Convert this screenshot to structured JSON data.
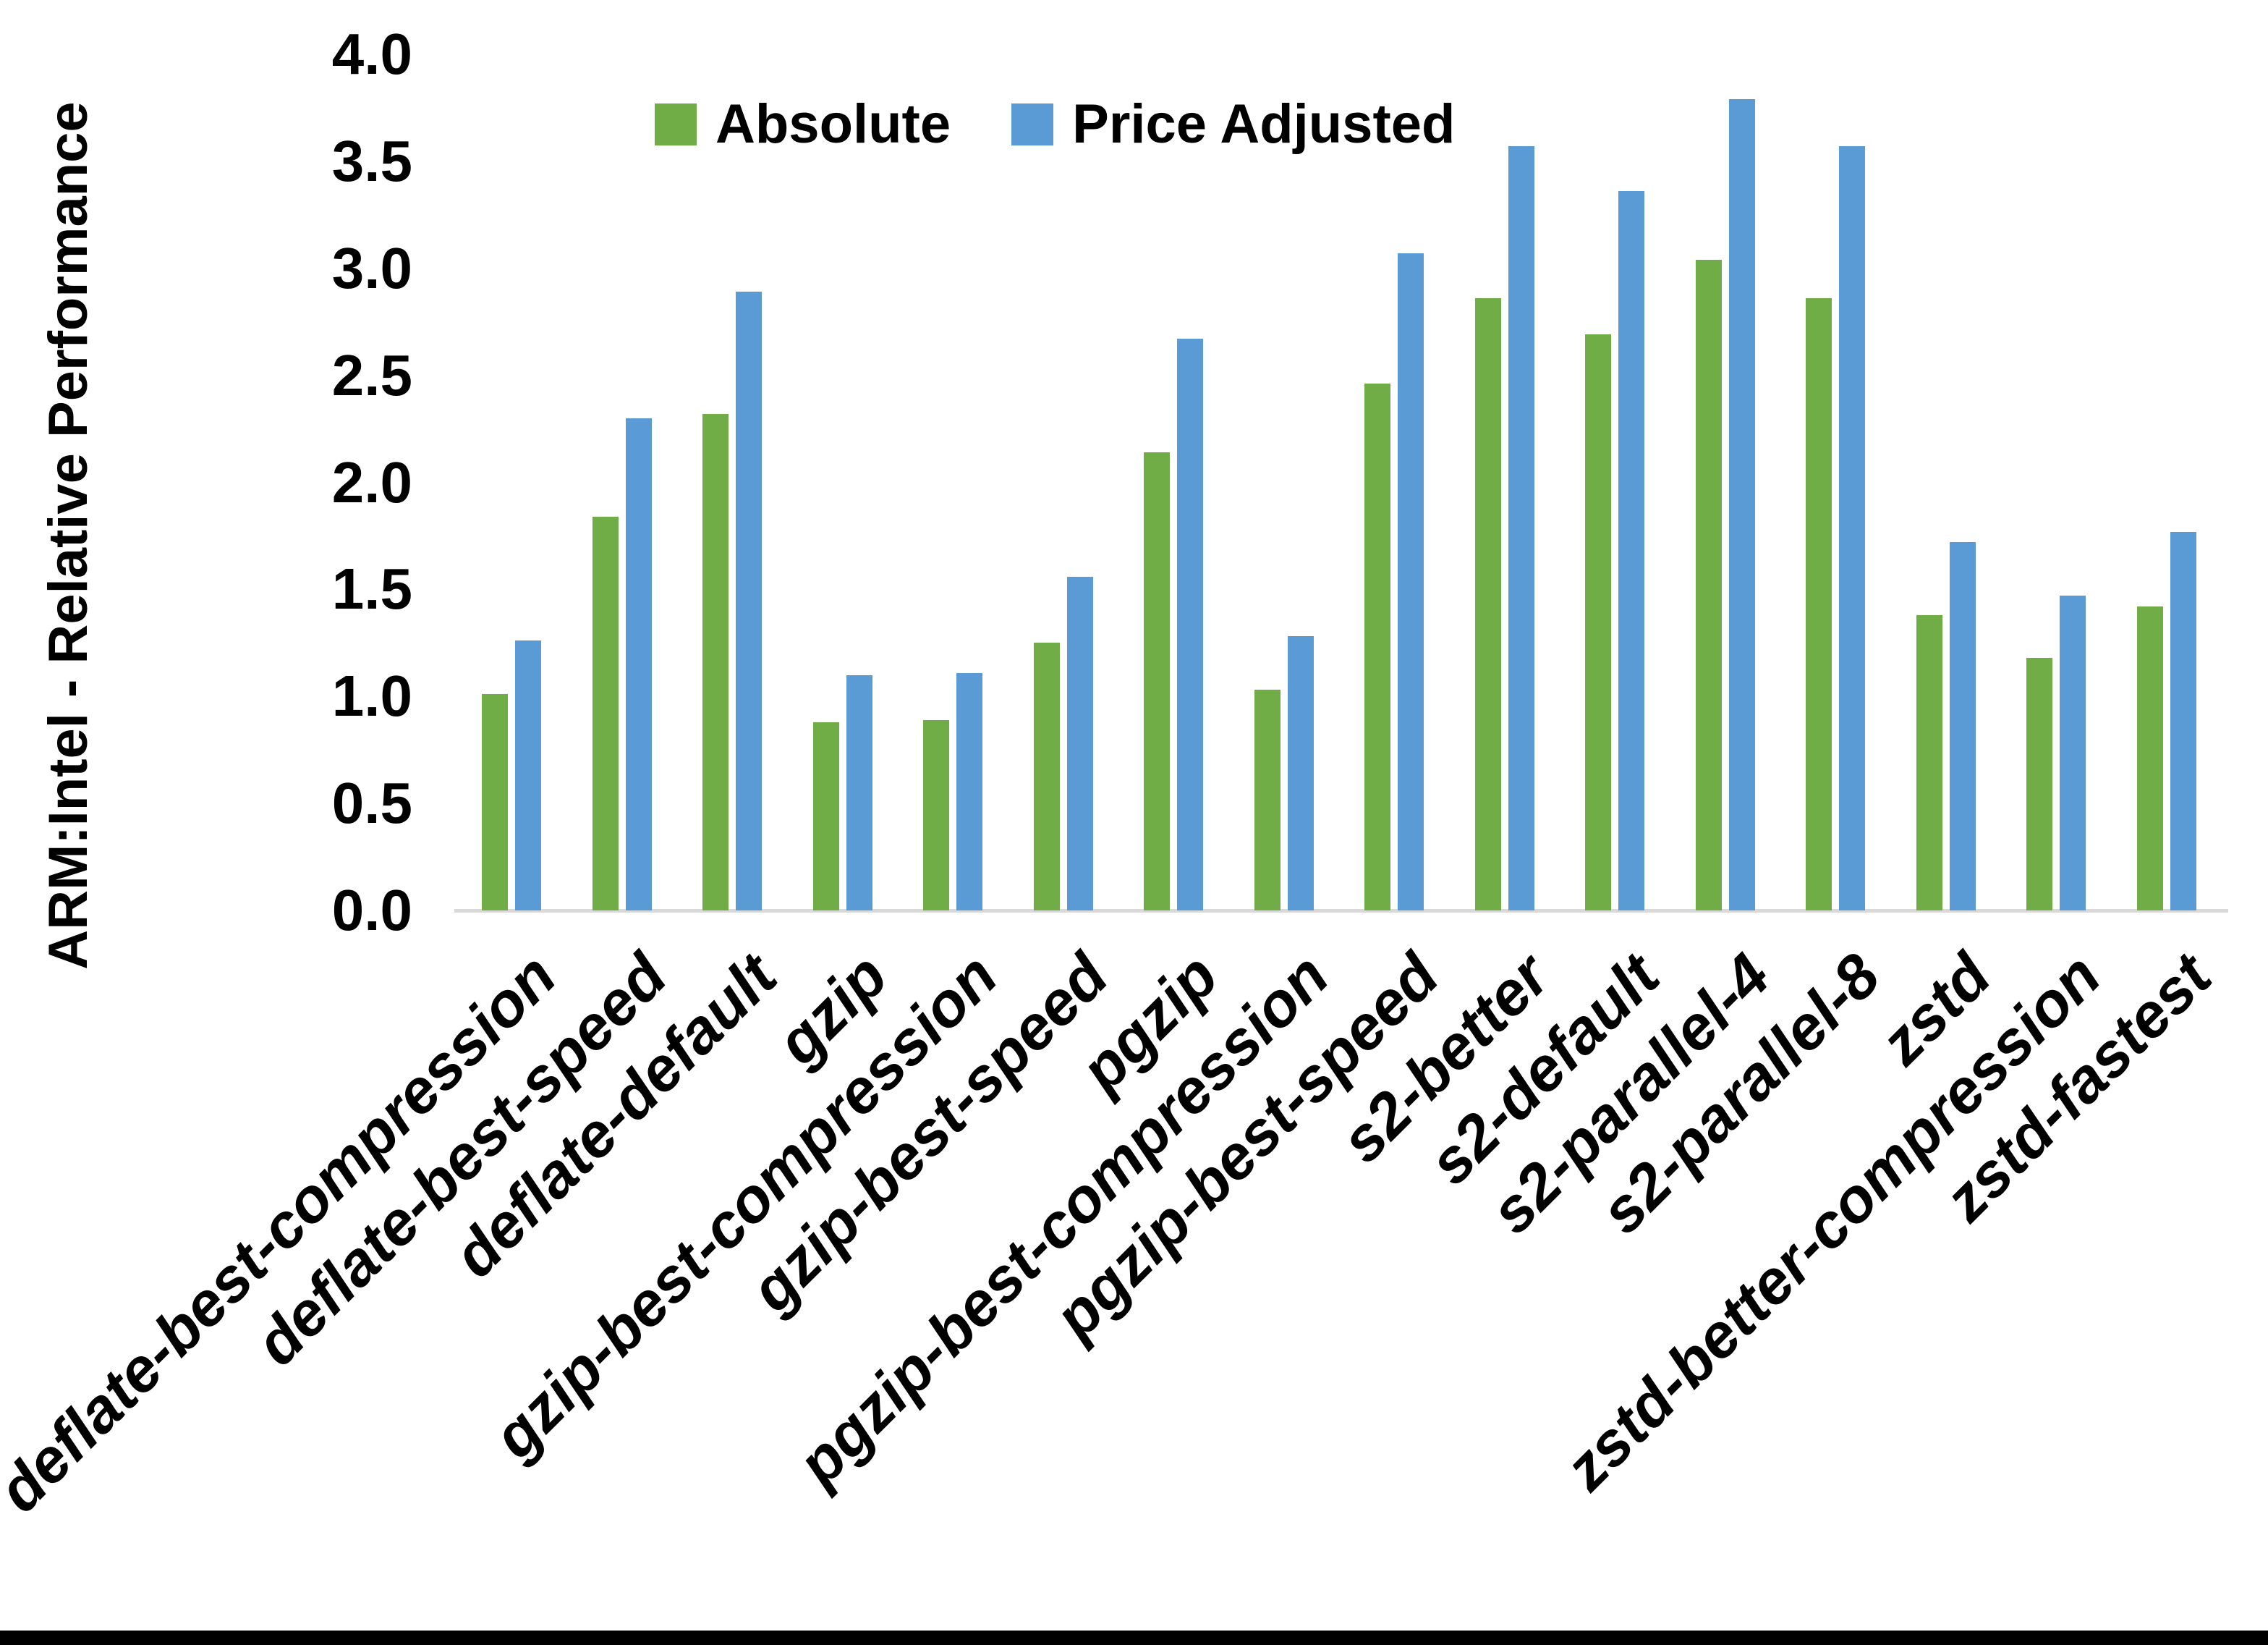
{
  "figure": {
    "background_color": "#ffffff",
    "bottom_border_color": "#000000"
  },
  "chart_data": {
    "type": "bar",
    "title": "",
    "xlabel": "",
    "ylabel": "ARM:Intel - Relative Performance",
    "ylim": [
      0.0,
      4.0
    ],
    "ytick_step": 0.5,
    "ytick_labels": [
      "4.0",
      "3.5",
      "3.0",
      "2.5",
      "2.0",
      "1.5",
      "1.0",
      "0.5",
      "0.0"
    ],
    "grid": false,
    "legend_position": "top-inside",
    "axis_line_color": "#d9d9d9",
    "text_color": "#000000",
    "categories": [
      "deflate-best-compression",
      "deflate-best-speed",
      "deflate-default",
      "gzip",
      "gzip-best-compression",
      "gzip-best-speed",
      "pgzip",
      "pgzip-best-compression",
      "pgzip-best-speed",
      "s2-better",
      "s2-default",
      "s2-parallel-4",
      "s2-parallel-8",
      "zstd",
      "zstd-better-compression",
      "zstd-fastest"
    ],
    "series": [
      {
        "name": "Absolute",
        "color": "#70AD47",
        "values": [
          1.01,
          1.84,
          2.32,
          0.88,
          0.89,
          1.25,
          2.14,
          1.03,
          2.46,
          2.86,
          2.69,
          3.04,
          2.86,
          1.38,
          1.18,
          1.42
        ]
      },
      {
        "name": "Price Adjusted",
        "color": "#5B9BD5",
        "values": [
          1.26,
          2.3,
          2.89,
          1.1,
          1.11,
          1.56,
          2.67,
          1.28,
          3.07,
          3.57,
          3.36,
          3.79,
          3.57,
          1.72,
          1.47,
          1.77
        ]
      }
    ]
  }
}
